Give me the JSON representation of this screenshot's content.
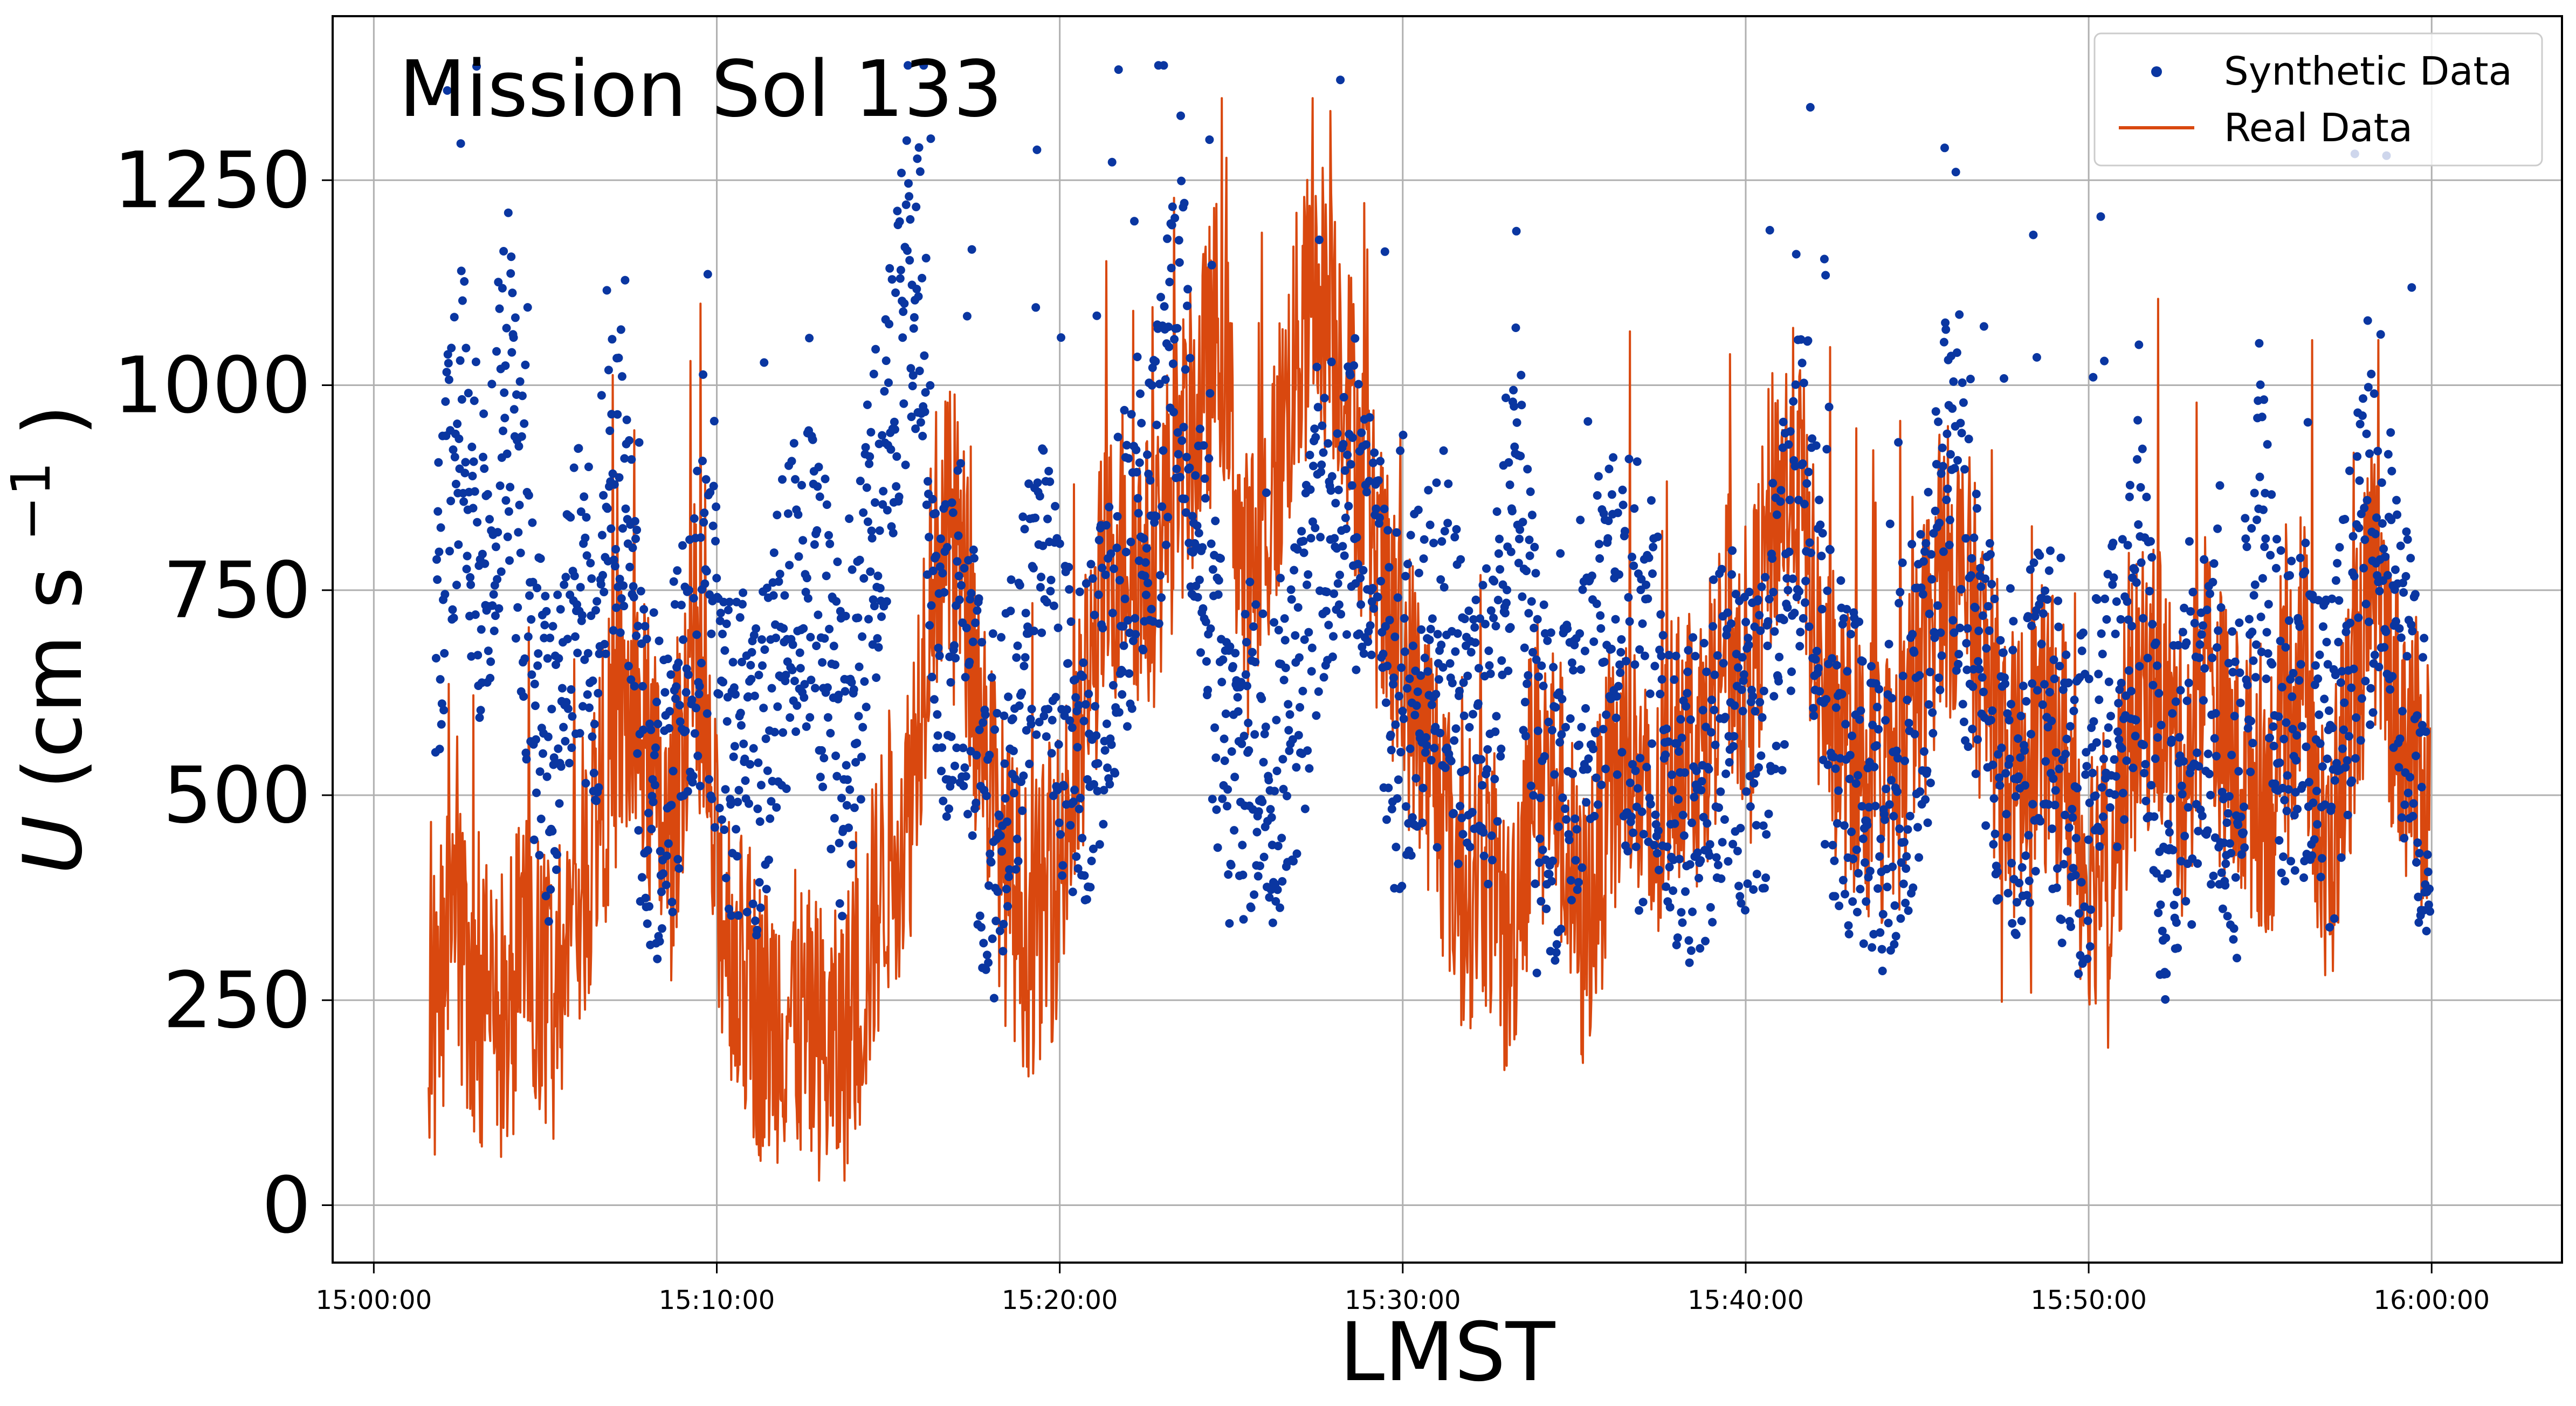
{
  "chart_data": {
    "type": "line+scatter",
    "title": "",
    "annotation": "Mission Sol 133",
    "xlabel": "LMST",
    "ylabel_main": "U",
    "ylabel_unit": "(cm s",
    "ylabel_exp": "−1",
    "ylabel_close": ")",
    "xlim": [
      "15:00:00",
      "16:00:00"
    ],
    "ylim": [
      -70,
      1450
    ],
    "yticks": [
      0,
      250,
      500,
      750,
      1000,
      1250
    ],
    "ytick_labels": [
      "0",
      "250",
      "500",
      "750",
      "1000",
      "1250"
    ],
    "xtick_labels": [
      "15:00:00",
      "15:10:00",
      "15:20:00",
      "15:30:00",
      "15:40:00",
      "15:50:00",
      "16:00:00"
    ],
    "grid": true,
    "legend_position": "top-right",
    "series": [
      {
        "name": "Synthetic Data",
        "kind": "scatter",
        "color": "#0a36a1",
        "x_minutes_start": 1.8,
        "x_minutes_end": 59.95,
        "x": [
          "15:01:48",
          "15:02:30",
          "15:03:12",
          "15:03:54",
          "15:04:30",
          "15:05:06",
          "15:05:48",
          "15:06:30",
          "15:07:06",
          "15:07:48",
          "15:08:24",
          "15:09:00",
          "15:09:42",
          "15:10:24",
          "15:11:06",
          "15:11:42",
          "15:12:24",
          "15:13:06",
          "15:13:48",
          "15:14:30",
          "15:15:06",
          "15:15:48",
          "15:16:30",
          "15:17:12",
          "15:17:54",
          "15:18:36",
          "15:19:18",
          "15:20:00",
          "15:20:42",
          "15:21:24",
          "15:22:06",
          "15:22:48",
          "15:23:30",
          "15:24:12",
          "15:24:54",
          "15:25:36",
          "15:26:18",
          "15:27:00",
          "15:27:42",
          "15:28:24",
          "15:29:06",
          "15:29:48",
          "15:30:30",
          "15:31:12",
          "15:31:54",
          "15:32:36",
          "15:33:18",
          "15:34:00",
          "15:34:42",
          "15:35:24",
          "15:36:06",
          "15:36:48",
          "15:37:30",
          "15:38:12",
          "15:38:54",
          "15:39:36",
          "15:40:18",
          "15:41:00",
          "15:41:42",
          "15:42:24",
          "15:43:06",
          "15:43:48",
          "15:44:30",
          "15:45:12",
          "15:45:54",
          "15:46:36",
          "15:47:18",
          "15:48:00",
          "15:48:42",
          "15:49:24",
          "15:50:06",
          "15:50:48",
          "15:51:30",
          "15:52:12",
          "15:52:54",
          "15:53:36",
          "15:54:18",
          "15:55:00",
          "15:55:42",
          "15:56:24",
          "15:57:06",
          "15:57:48",
          "15:58:30",
          "15:59:12",
          "15:59:54"
        ],
        "values": [
          720,
          980,
          760,
          1020,
          700,
          520,
          760,
          680,
          940,
          560,
          470,
          610,
          720,
          560,
          520,
          630,
          780,
          700,
          520,
          820,
          950,
          1200,
          640,
          720,
          420,
          560,
          780,
          620,
          540,
          700,
          810,
          880,
          1080,
          760,
          520,
          560,
          540,
          640,
          840,
          900,
          780,
          560,
          660,
          720,
          560,
          600,
          880,
          520,
          500,
          620,
          760,
          560,
          620,
          460,
          540,
          600,
          520,
          720,
          920,
          600,
          520,
          470,
          540,
          620,
          940,
          700,
          580,
          520,
          640,
          460,
          520,
          620,
          780,
          430,
          540,
          600,
          480,
          900,
          560,
          620,
          540,
          760,
          820,
          640,
          480
        ]
      },
      {
        "name": "Real Data",
        "kind": "line",
        "color": "#d9480f",
        "x_minutes_start": 1.6,
        "x_minutes_end": 59.95,
        "x": [
          "15:01:36",
          "15:02:18",
          "15:03:00",
          "15:03:42",
          "15:04:24",
          "15:05:06",
          "15:05:48",
          "15:06:30",
          "15:07:12",
          "15:07:54",
          "15:08:36",
          "15:09:18",
          "15:10:00",
          "15:10:42",
          "15:11:24",
          "15:12:06",
          "15:12:48",
          "15:13:30",
          "15:14:12",
          "15:14:54",
          "15:15:36",
          "15:16:18",
          "15:17:00",
          "15:17:42",
          "15:18:24",
          "15:19:06",
          "15:19:48",
          "15:20:30",
          "15:21:12",
          "15:21:54",
          "15:22:36",
          "15:23:18",
          "15:24:00",
          "15:24:42",
          "15:25:24",
          "15:26:06",
          "15:26:48",
          "15:27:30",
          "15:28:12",
          "15:28:54",
          "15:29:36",
          "15:30:18",
          "15:31:00",
          "15:31:42",
          "15:32:24",
          "15:33:06",
          "15:33:48",
          "15:34:30",
          "15:35:12",
          "15:35:54",
          "15:36:36",
          "15:37:18",
          "15:38:00",
          "15:38:42",
          "15:39:24",
          "15:40:06",
          "15:40:48",
          "15:41:30",
          "15:42:12",
          "15:42:54",
          "15:43:36",
          "15:44:18",
          "15:45:00",
          "15:45:42",
          "15:46:24",
          "15:47:06",
          "15:47:48",
          "15:48:30",
          "15:49:12",
          "15:49:54",
          "15:50:36",
          "15:51:18",
          "15:52:00",
          "15:52:42",
          "15:53:24",
          "15:54:06",
          "15:54:48",
          "15:55:30",
          "15:56:12",
          "15:56:54",
          "15:57:36",
          "15:58:18",
          "15:59:00",
          "15:59:42"
        ],
        "values": [
          200,
          320,
          260,
          220,
          300,
          240,
          330,
          480,
          600,
          560,
          420,
          700,
          400,
          280,
          220,
          240,
          200,
          180,
          260,
          420,
          480,
          800,
          820,
          600,
          400,
          330,
          380,
          520,
          740,
          820,
          760,
          880,
          960,
          1080,
          740,
          840,
          1020,
          1120,
          1050,
          860,
          700,
          620,
          520,
          380,
          420,
          300,
          560,
          520,
          320,
          460,
          560,
          420,
          600,
          560,
          700,
          640,
          860,
          900,
          640,
          560,
          520,
          500,
          620,
          780,
          760,
          620,
          520,
          580,
          560,
          420,
          420,
          600,
          650,
          520,
          660,
          540,
          520,
          500,
          700,
          380,
          600,
          760,
          600,
          520
        ]
      }
    ],
    "colors": {
      "synthetic": "#0a36a1",
      "real": "#d9480f",
      "grid": "#b0b0b0"
    }
  }
}
